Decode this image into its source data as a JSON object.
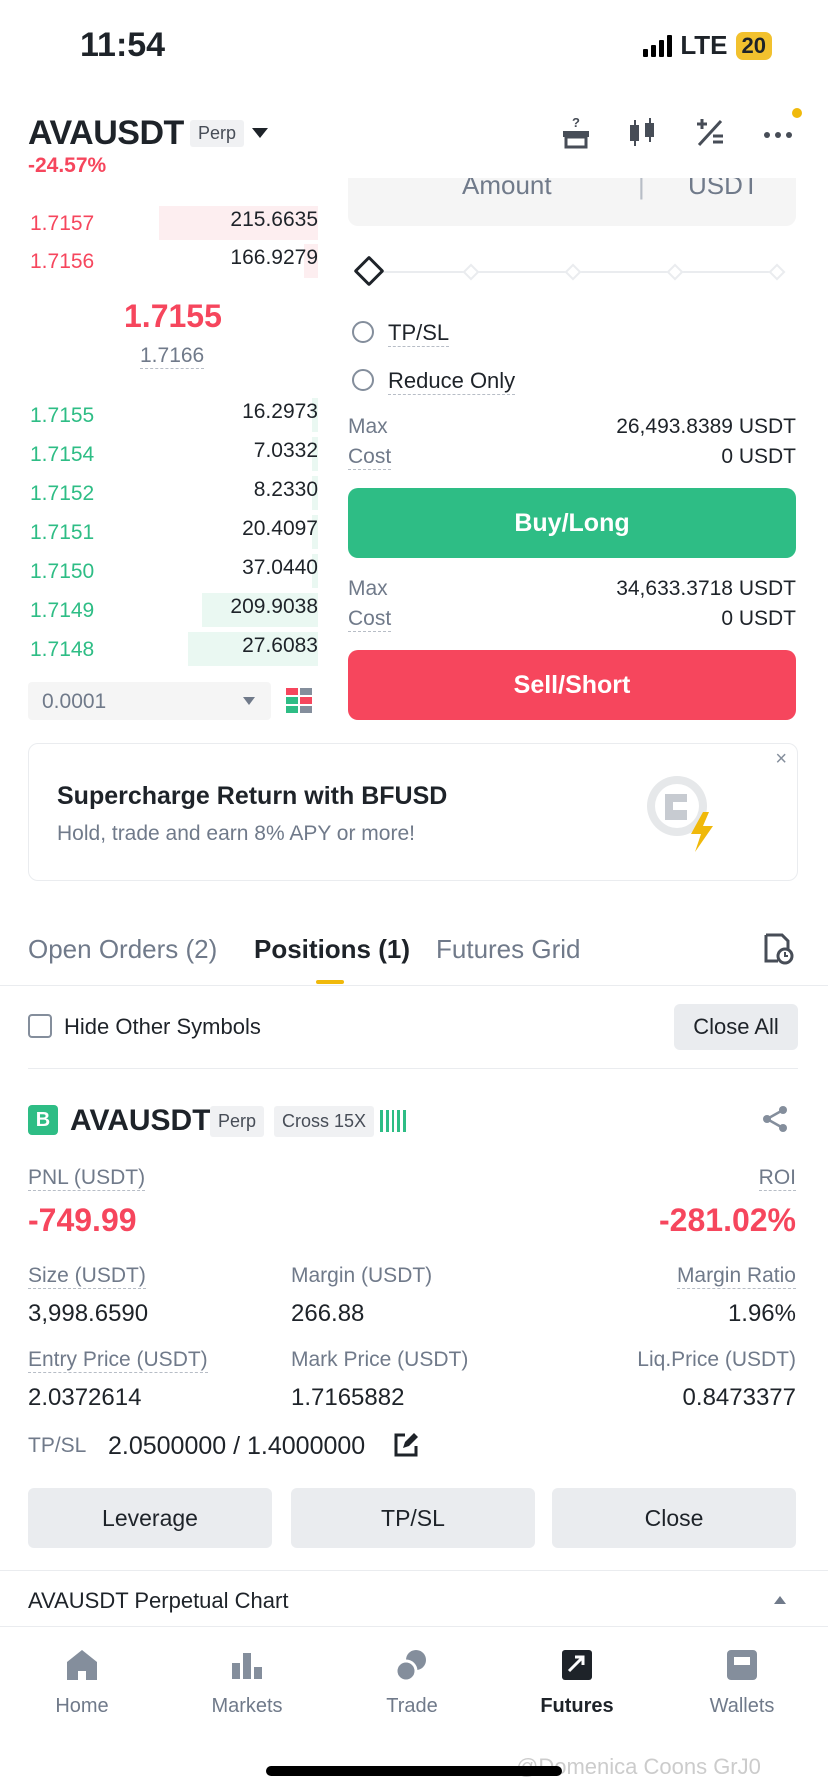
{
  "status": {
    "time": "11:54",
    "network": "LTE",
    "battery": "20"
  },
  "header": {
    "symbol": "AVAUSDT",
    "type_tag": "Perp",
    "change": "-24.57%",
    "icons": [
      "gift-help-icon",
      "candlestick-icon",
      "calculator-icon",
      "more-icon"
    ]
  },
  "orderbook": {
    "asks": [
      {
        "price": "1.7157",
        "qty": "215.6635",
        "depth": 0.55
      },
      {
        "price": "1.7156",
        "qty": "166.9279",
        "depth": 0.05
      }
    ],
    "last_price": "1.7155",
    "mark_price": "1.7166",
    "bids": [
      {
        "price": "1.7155",
        "qty": "16.2973",
        "depth": 0.02
      },
      {
        "price": "1.7154",
        "qty": "7.0332",
        "depth": 0.02
      },
      {
        "price": "1.7152",
        "qty": "8.2330",
        "depth": 0.02
      },
      {
        "price": "1.7151",
        "qty": "20.4097",
        "depth": 0.02
      },
      {
        "price": "1.7150",
        "qty": "37.0440",
        "depth": 0.02
      },
      {
        "price": "1.7149",
        "qty": "209.9038",
        "depth": 0.4
      },
      {
        "price": "1.7148",
        "qty": "27.6083",
        "depth": 0.45
      }
    ],
    "precision": "0.0001"
  },
  "order_form": {
    "amount_placeholder": "Amount",
    "amount_unit": "USDT",
    "tpsl_label": "TP/SL",
    "reduce_only_label": "Reduce Only",
    "buy": {
      "max_label": "Max",
      "max_value": "26,493.8389 USDT",
      "cost_label": "Cost",
      "cost_value": "0 USDT",
      "button": "Buy/Long"
    },
    "sell": {
      "max_label": "Max",
      "max_value": "34,633.3718 USDT",
      "cost_label": "Cost",
      "cost_value": "0 USDT",
      "button": "Sell/Short"
    }
  },
  "promo": {
    "title": "Supercharge Return with BFUSD",
    "subtitle": "Hold, trade and earn 8% APY or more!",
    "close": "×"
  },
  "tabs": [
    {
      "label": "Open Orders (2)"
    },
    {
      "label": "Positions (1)"
    },
    {
      "label": "Futures Grid"
    }
  ],
  "filters": {
    "hide_other": "Hide Other Symbols",
    "close_all": "Close All"
  },
  "position": {
    "side_badge": "B",
    "symbol": "AVAUSDT",
    "tag_perp": "Perp",
    "tag_margin": "Cross 15X",
    "pnl_label": "PNL (USDT)",
    "pnl_value": "-749.99",
    "roi_label": "ROI",
    "roi_value": "-281.02%",
    "size_label": "Size (USDT)",
    "size_value": "3,998.6590",
    "margin_label": "Margin (USDT)",
    "margin_value": "266.88",
    "margin_ratio_label": "Margin Ratio",
    "margin_ratio_value": "1.96%",
    "entry_label": "Entry Price (USDT)",
    "entry_value": "2.0372614",
    "mark_label": "Mark Price (USDT)",
    "mark_value": "1.7165882",
    "liq_label": "Liq.Price (USDT)",
    "liq_value": "0.8473377",
    "tpsl_label": "TP/SL",
    "tpsl_value": "2.0500000 / 1.4000000",
    "buttons": {
      "leverage": "Leverage",
      "tpsl": "TP/SL",
      "close": "Close"
    }
  },
  "chart_bar": {
    "label": "AVAUSDT Perpetual  Chart"
  },
  "nav": [
    {
      "label": "Home",
      "icon": "home-icon"
    },
    {
      "label": "Markets",
      "icon": "markets-icon"
    },
    {
      "label": "Trade",
      "icon": "trade-icon"
    },
    {
      "label": "Futures",
      "icon": "futures-icon",
      "active": true
    },
    {
      "label": "Wallets",
      "icon": "wallet-icon"
    }
  ],
  "watermark": "@Domenica Coons GrJ0",
  "colors": {
    "green": "#2ebd85",
    "red": "#f6465d",
    "yellow": "#f0b90b"
  }
}
